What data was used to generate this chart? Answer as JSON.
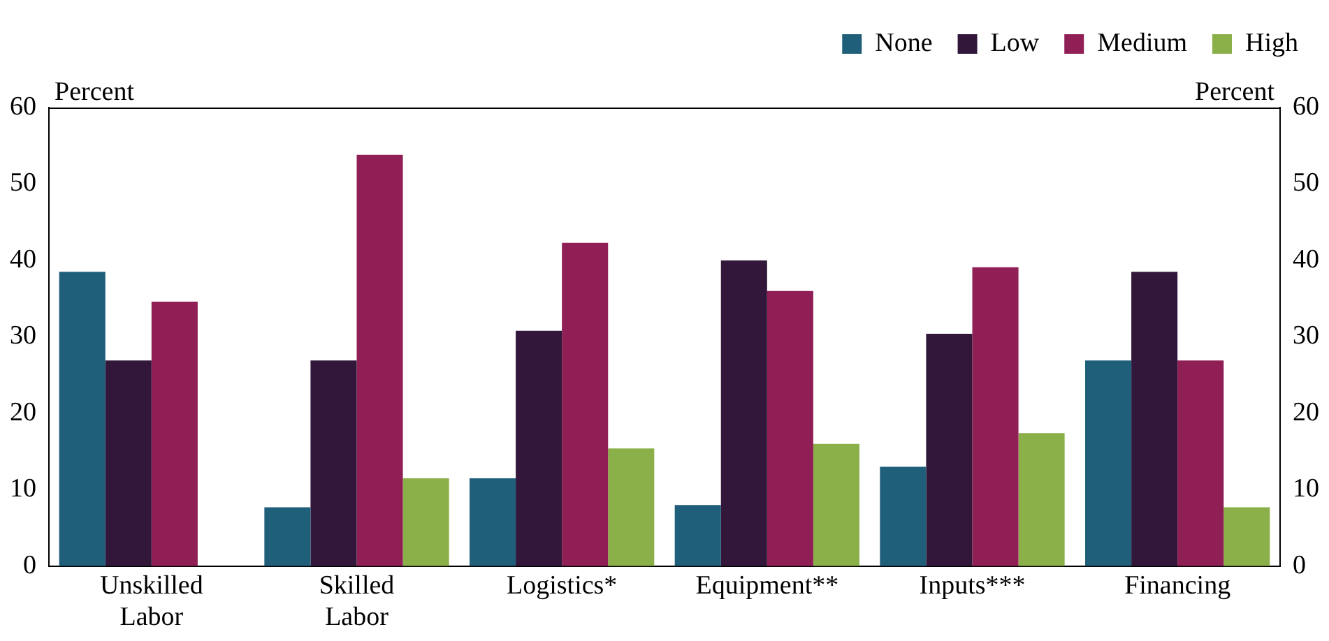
{
  "chart_data": {
    "type": "bar",
    "ylabel": "Percent",
    "y2label": "Percent",
    "categories": [
      "Unskilled Labor",
      "Skilled Labor",
      "Logistics*",
      "Equipment**",
      "Inputs***",
      "Financing"
    ],
    "series": [
      {
        "name": "None",
        "color": "#1f5f7a",
        "values": [
          38.5,
          7.7,
          11.5,
          8,
          13,
          26.9
        ]
      },
      {
        "name": "Low",
        "color": "#32173b",
        "values": [
          26.9,
          26.9,
          30.8,
          40,
          30.4,
          38.5
        ]
      },
      {
        "name": "Medium",
        "color": "#8f1f55",
        "values": [
          34.6,
          53.8,
          42.3,
          36,
          39.1,
          26.9
        ]
      },
      {
        "name": "High",
        "color": "#8bb04a",
        "values": [
          0,
          11.5,
          15.4,
          16,
          17.4,
          7.7
        ]
      }
    ],
    "ylim": [
      0,
      60
    ],
    "yticks": [
      0,
      10,
      20,
      30,
      40,
      50,
      60
    ],
    "y2lim": [
      0,
      60
    ],
    "y2ticks": [
      0,
      10,
      20,
      30,
      40,
      50,
      60
    ],
    "grid": false,
    "legend": "top right"
  }
}
